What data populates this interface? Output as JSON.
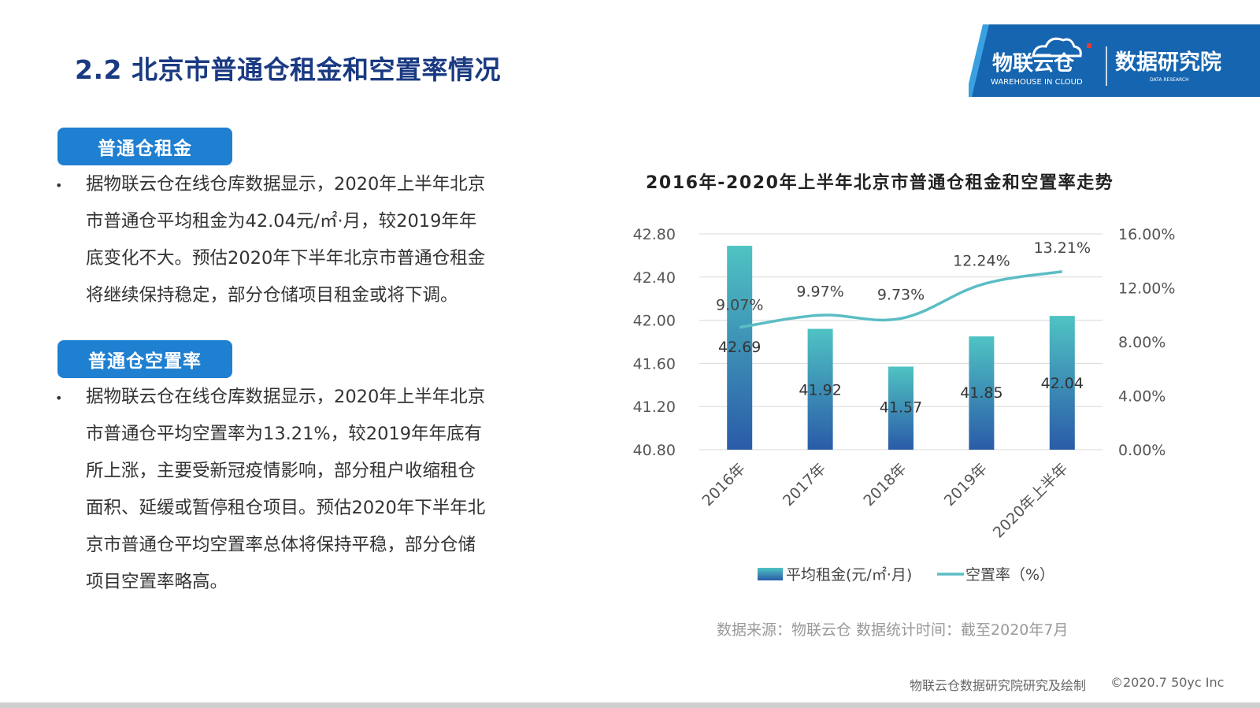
{
  "header": {
    "title": "2.2 北京市普通仓租金和空置率情况",
    "logo_brand": "物联云仓",
    "logo_sub": "WAREHOUSE IN CLOUD",
    "logo_right": "数据研究院",
    "logo_right_sub": "DATA RESEARCH"
  },
  "sections": [
    {
      "badge": "普通仓租金",
      "text": "据物联云仓在线仓库数据显示，2020年上半年北京市普通仓平均租金为42.04元/㎡·月，较2019年年底变化不大。预估2020年下半年北京市普通仓租金将继续保持稳定，部分仓储项目租金或将下调。",
      "lines": [
        "据物联云仓在线仓库数据显示，2020年上半年北京",
        "市普通仓平均租金为42.04元/㎡·月，较2019年年",
        "底变化不大。预估2020年下半年北京市普通仓租金",
        "将继续保持稳定，部分仓储项目租金或将下调。"
      ]
    },
    {
      "badge": "普通仓空置率",
      "lines": [
        "据物联云仓在线仓库数据显示，2020年上半年北京",
        "市普通仓平均空置率为13.21%，较2019年年底有",
        "所上涨，主要受新冠疫情影响，部分租户收缩租仓",
        "面积、延缓或暂停租仓项目。预估2020年下半年北",
        "京市普通仓平均空置率总体将保持平稳，部分仓储",
        "项目空置率略高。"
      ]
    }
  ],
  "chart_data": {
    "type": "bar",
    "title": "2016年-2020年上半年北京市普通仓租金和空置率走势",
    "categories": [
      "2016年",
      "2017年",
      "2018年",
      "2019年",
      "2020年上半年"
    ],
    "series": [
      {
        "name": "平均租金(元/㎡·月)",
        "type": "bar",
        "axis": "left",
        "values": [
          42.69,
          41.92,
          41.57,
          41.85,
          42.04
        ],
        "labels": [
          "42.69",
          "41.92",
          "41.57",
          "41.85",
          "42.04"
        ]
      },
      {
        "name": "空置率（%）",
        "type": "line",
        "axis": "right",
        "values": [
          9.07,
          9.97,
          9.73,
          12.24,
          13.21
        ],
        "labels": [
          "9.07%",
          "9.97%",
          "9.73%",
          "12.24%",
          "13.21%"
        ]
      }
    ],
    "left_axis": {
      "ylim": [
        40.8,
        42.8
      ],
      "ticks": [
        "40.80",
        "41.20",
        "41.60",
        "42.00",
        "42.40",
        "42.80"
      ]
    },
    "right_axis": {
      "ylim": [
        0,
        16
      ],
      "ticks": [
        "0.00%",
        "4.00%",
        "8.00%",
        "12.00%",
        "16.00%"
      ]
    },
    "grid": true,
    "legend": "bottom",
    "colors": {
      "bar_top": "#4fc3c3",
      "bar_bottom": "#2a5ba8",
      "line": "#5bbdc4"
    }
  },
  "source": "数据来源：物联云仓 数据统计时间：截至2020年7月",
  "footer": {
    "left": "物联云仓数据研究院研究及绘制",
    "right": "©2020.7 50yc Inc"
  },
  "colors": {
    "title": "#1a3a82",
    "badge": "#1f7fd1",
    "logo_bg": "#1565b0"
  }
}
